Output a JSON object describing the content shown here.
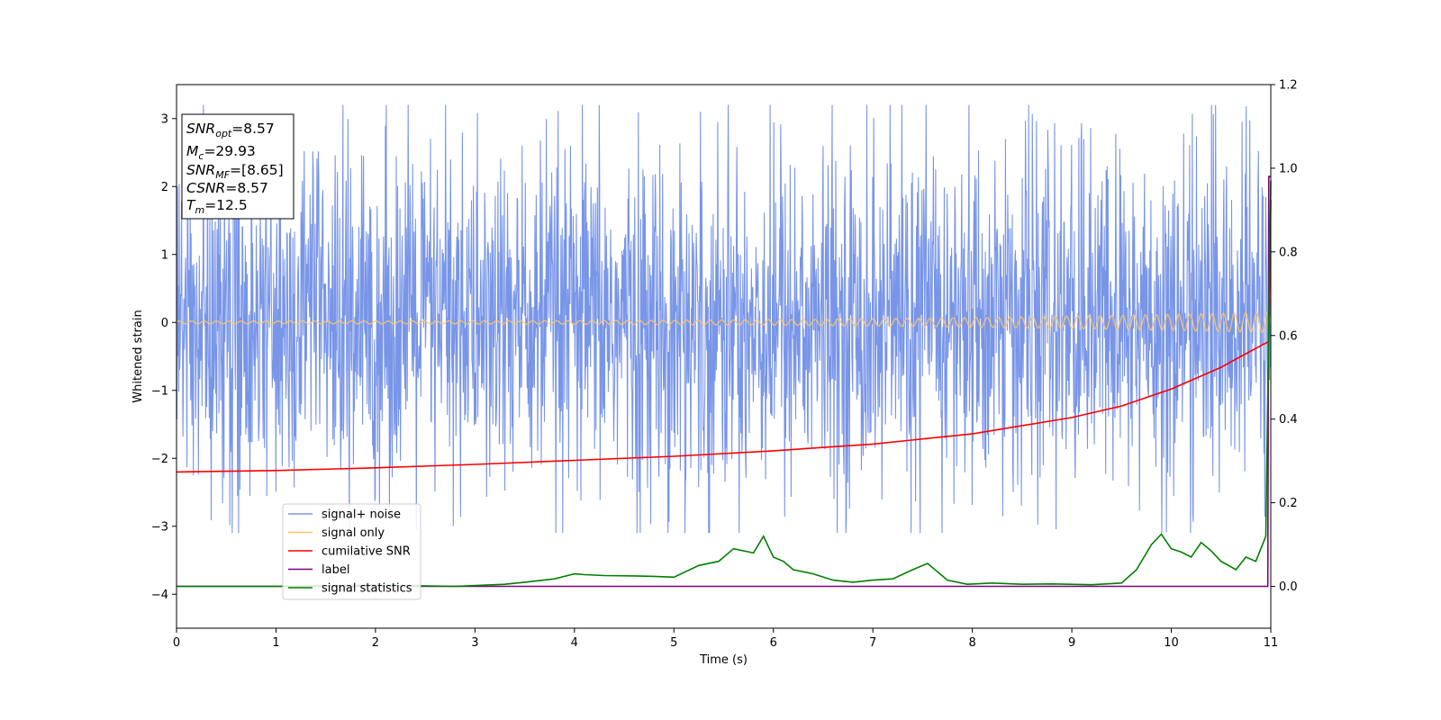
{
  "chart_data": {
    "type": "line",
    "title": "",
    "xlabel": "Time (s)",
    "ylabel": "Whitened strain",
    "xlim": [
      0,
      11
    ],
    "ylim": [
      -4.5,
      3.5
    ],
    "y2lim": [
      -0.1,
      1.2
    ],
    "xticks": [
      0,
      1,
      2,
      3,
      4,
      5,
      6,
      7,
      8,
      9,
      10,
      11
    ],
    "yticks": [
      -4,
      -3,
      -2,
      -1,
      0,
      1,
      2,
      3
    ],
    "y2ticks": [
      0.0,
      0.2,
      0.4,
      0.6,
      0.8,
      1.0,
      1.2
    ],
    "grid": false,
    "legend": {
      "placement": "lower-left",
      "entries": [
        {
          "label": "signal+ noise",
          "color": "#7895e8"
        },
        {
          "label": "signal only",
          "color": "#ffc46a"
        },
        {
          "label": "cumilative SNR",
          "color": "#ff0000"
        },
        {
          "label": "label",
          "color": "#800080"
        },
        {
          "label": "signal statistics",
          "color": "#008000"
        }
      ]
    },
    "annotation": {
      "lines": [
        {
          "main": "SNR",
          "sub": "opt",
          "value": "=8.57"
        },
        {
          "main": "M",
          "sub": "c",
          "value": "=29.93"
        },
        {
          "main": "SNR",
          "sub": "MF",
          "value": "=[8.65]"
        },
        {
          "main": "CSNR",
          "sub": "",
          "value": "=8.57"
        },
        {
          "main": "T",
          "sub": "m",
          "value": "=12.5"
        }
      ]
    },
    "series": [
      {
        "name": "signal+ noise",
        "axis": "left",
        "style": "noise",
        "color": "#7895e8",
        "noise_envelope": {
          "x": [
            0,
            11
          ],
          "min": [
            -3.1,
            -3.1
          ],
          "max": [
            3.2,
            3.2
          ],
          "typical_abs": 1.3
        }
      },
      {
        "name": "signal only",
        "axis": "left",
        "style": "chirp",
        "color": "#ffc46a",
        "chirp": {
          "amplitude_start": 0.02,
          "amplitude_end": 0.15,
          "cycles_start_per_s": 8,
          "cycles_end_per_s": 9
        }
      },
      {
        "name": "cumilative SNR",
        "axis": "left",
        "style": "line",
        "color": "#ff0000",
        "x": [
          0,
          0.5,
          1,
          2,
          3,
          4,
          5,
          6,
          7,
          8,
          9,
          9.5,
          10,
          10.5,
          10.8,
          10.98,
          11.0
        ],
        "y": [
          -2.2,
          -2.19,
          -2.18,
          -2.14,
          -2.09,
          -2.03,
          -1.97,
          -1.89,
          -1.79,
          -1.64,
          -1.4,
          -1.23,
          -0.98,
          -0.66,
          -0.42,
          -0.28,
          1.8
        ]
      },
      {
        "name": "label",
        "axis": "right",
        "style": "line",
        "color": "#800080",
        "x": [
          0,
          10.97,
          10.98,
          11.0
        ],
        "y": [
          0.0,
          0.0,
          0.98,
          0.98
        ]
      },
      {
        "name": "signal statistics",
        "axis": "right",
        "style": "line",
        "color": "#008000",
        "x": [
          0,
          1,
          2,
          2.8,
          3.3,
          3.5,
          3.8,
          4.0,
          4.1,
          4.3,
          4.6,
          4.8,
          5.0,
          5.25,
          5.45,
          5.6,
          5.8,
          5.9,
          6.0,
          6.1,
          6.2,
          6.4,
          6.6,
          6.8,
          7.0,
          7.2,
          7.4,
          7.55,
          7.75,
          7.95,
          8.2,
          8.5,
          8.8,
          9.2,
          9.5,
          9.65,
          9.8,
          9.9,
          10.0,
          10.1,
          10.2,
          10.3,
          10.4,
          10.5,
          10.65,
          10.75,
          10.85,
          10.95,
          11.0
        ],
        "y": [
          0.0,
          0.0,
          0.003,
          0.0,
          0.005,
          0.01,
          0.018,
          0.03,
          0.028,
          0.026,
          0.025,
          0.024,
          0.022,
          0.05,
          0.06,
          0.09,
          0.08,
          0.12,
          0.07,
          0.06,
          0.04,
          0.03,
          0.015,
          0.01,
          0.015,
          0.018,
          0.04,
          0.055,
          0.015,
          0.005,
          0.008,
          0.005,
          0.006,
          0.004,
          0.008,
          0.04,
          0.1,
          0.125,
          0.09,
          0.082,
          0.07,
          0.105,
          0.085,
          0.06,
          0.04,
          0.07,
          0.06,
          0.12,
          0.97
        ]
      }
    ]
  }
}
